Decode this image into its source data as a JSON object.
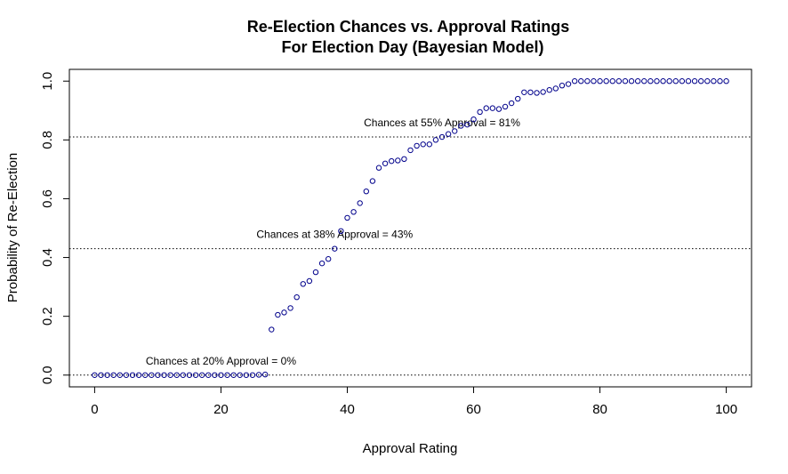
{
  "chart_data": {
    "type": "scatter",
    "title": "Re-Election Chances vs. Approval Ratings",
    "subtitle": "For Election Day (Bayesian Model)",
    "xlabel": "Approval Rating",
    "ylabel": "Probability of Re-Election",
    "xlim": [
      -4,
      104
    ],
    "ylim": [
      -0.04,
      1.04
    ],
    "xticks": [
      0,
      20,
      40,
      60,
      80,
      100
    ],
    "xtick_labels": [
      "0",
      "20",
      "40",
      "60",
      "80",
      "100"
    ],
    "yticks": [
      0.0,
      0.2,
      0.4,
      0.6,
      0.8,
      1.0
    ],
    "ytick_labels": [
      "0.0",
      "0.2",
      "0.4",
      "0.6",
      "0.8",
      "1.0"
    ],
    "grid": false,
    "marker_color": "#00008b",
    "x": [
      0,
      1,
      2,
      3,
      4,
      5,
      6,
      7,
      8,
      9,
      10,
      11,
      12,
      13,
      14,
      15,
      16,
      17,
      18,
      19,
      20,
      21,
      22,
      23,
      24,
      25,
      26,
      27,
      28,
      29,
      30,
      31,
      32,
      33,
      34,
      35,
      36,
      37,
      38,
      39,
      40,
      41,
      42,
      43,
      44,
      45,
      46,
      47,
      48,
      49,
      50,
      51,
      52,
      53,
      54,
      55,
      56,
      57,
      58,
      59,
      60,
      61,
      62,
      63,
      64,
      65,
      66,
      67,
      68,
      69,
      70,
      71,
      72,
      73,
      74,
      75,
      76,
      77,
      78,
      79,
      80,
      81,
      82,
      83,
      84,
      85,
      86,
      87,
      88,
      89,
      90,
      91,
      92,
      93,
      94,
      95,
      96,
      97,
      98,
      99,
      100
    ],
    "y": [
      0,
      0,
      0,
      0,
      0,
      0,
      0,
      0,
      0,
      0,
      0,
      0,
      0,
      0,
      0,
      0,
      0,
      0,
      0,
      0,
      0,
      0,
      0,
      0,
      0,
      0,
      0.001,
      0.002,
      0.155,
      0.205,
      0.213,
      0.228,
      0.265,
      0.31,
      0.32,
      0.35,
      0.38,
      0.395,
      0.43,
      0.49,
      0.535,
      0.555,
      0.585,
      0.625,
      0.66,
      0.705,
      0.72,
      0.728,
      0.73,
      0.735,
      0.765,
      0.78,
      0.785,
      0.785,
      0.8,
      0.81,
      0.82,
      0.83,
      0.848,
      0.852,
      0.87,
      0.895,
      0.908,
      0.908,
      0.905,
      0.913,
      0.925,
      0.94,
      0.962,
      0.962,
      0.96,
      0.963,
      0.97,
      0.975,
      0.985,
      0.99,
      1.0,
      1.0,
      1.0,
      1.0,
      1.0,
      1.0,
      1.0,
      1.0,
      1.0,
      1.0,
      1.0,
      1.0,
      1.0,
      1.0,
      1.0,
      1.0,
      1.0,
      1.0,
      1.0,
      1.0,
      1.0,
      1.0,
      1.0,
      1.0,
      1.0
    ],
    "reference_lines": [
      {
        "y": 0.0,
        "label": "Chances at 20% Approval = 0%",
        "label_x": 20
      },
      {
        "y": 0.43,
        "label": "Chances at 38% Approval = 43%",
        "label_x": 38
      },
      {
        "y": 0.81,
        "label": "Chances at 55% Approval = 81%",
        "label_x": 55
      }
    ]
  }
}
